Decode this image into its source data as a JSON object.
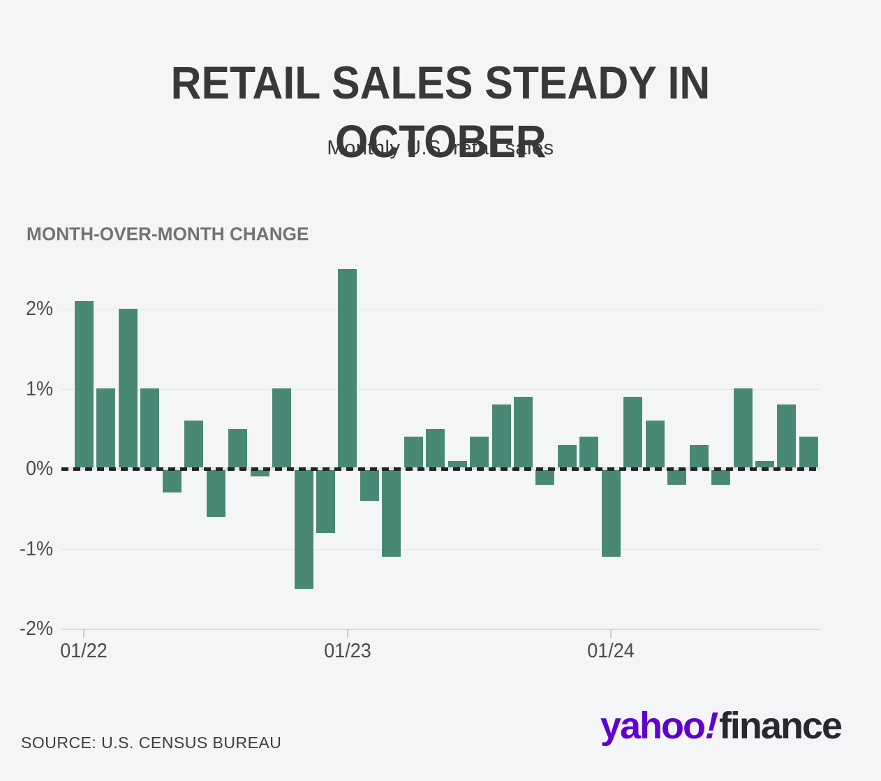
{
  "title_line1": "RETAIL SALES STEADY IN",
  "title_line2": "OCTOBER",
  "subtitle": "Monthly U.S. retail sales",
  "section_label": "MONTH-OVER-MONTH CHANGE",
  "source": "SOURCE: U.S. CENSUS BUREAU",
  "logo": {
    "brand": "yahoo",
    "bang": "!",
    "product": "finance",
    "brand_color": "#5f01d1",
    "product_color": "#28282e"
  },
  "colors": {
    "background": "#f4f5f7",
    "bar": "#4a8876",
    "gridline": "#e3e4e6",
    "zero_line_dash": "#232323",
    "axis_text": "#4b4b4b",
    "title_text": "#383838",
    "section_text": "#737373"
  },
  "chart_data": {
    "type": "bar",
    "title": "RETAIL SALES STEADY IN OCTOBER",
    "subtitle": "Monthly U.S. retail sales",
    "series_label": "MONTH-OVER-MONTH CHANGE",
    "unit": "%",
    "grid": "horizontal",
    "zero_line": "dashed-black",
    "legend": "none",
    "ylim": [
      -2.0,
      2.65
    ],
    "categories": [
      "01/22",
      "02/22",
      "03/22",
      "04/22",
      "05/22",
      "06/22",
      "07/22",
      "08/22",
      "09/22",
      "10/22",
      "11/22",
      "12/22",
      "01/23",
      "02/23",
      "03/23",
      "04/23",
      "05/23",
      "06/23",
      "07/23",
      "08/23",
      "09/23",
      "10/23",
      "11/23",
      "12/23",
      "01/24",
      "02/24",
      "03/24",
      "04/24",
      "05/24",
      "06/24",
      "07/24",
      "08/24",
      "09/24",
      "10/24"
    ],
    "values": [
      2.1,
      1.0,
      2.0,
      1.0,
      -0.3,
      0.6,
      -0.6,
      0.5,
      -0.1,
      1.0,
      -1.5,
      -0.8,
      2.5,
      -0.4,
      -1.1,
      0.4,
      0.5,
      0.1,
      0.4,
      0.8,
      0.9,
      -0.2,
      0.3,
      0.4,
      -1.1,
      0.9,
      0.6,
      -0.2,
      0.3,
      -0.2,
      1.0,
      0.1,
      0.8,
      0.4
    ],
    "y_ticks": [
      {
        "value": 2,
        "label": "2%"
      },
      {
        "value": 1,
        "label": "1%"
      },
      {
        "value": 0,
        "label": "0%"
      },
      {
        "value": -1,
        "label": "-1%"
      },
      {
        "value": -2,
        "label": "-2%"
      }
    ],
    "x_ticks": [
      {
        "index": 0,
        "label": "01/22"
      },
      {
        "index": 12,
        "label": "01/23"
      },
      {
        "index": 24,
        "label": "01/24"
      }
    ]
  }
}
